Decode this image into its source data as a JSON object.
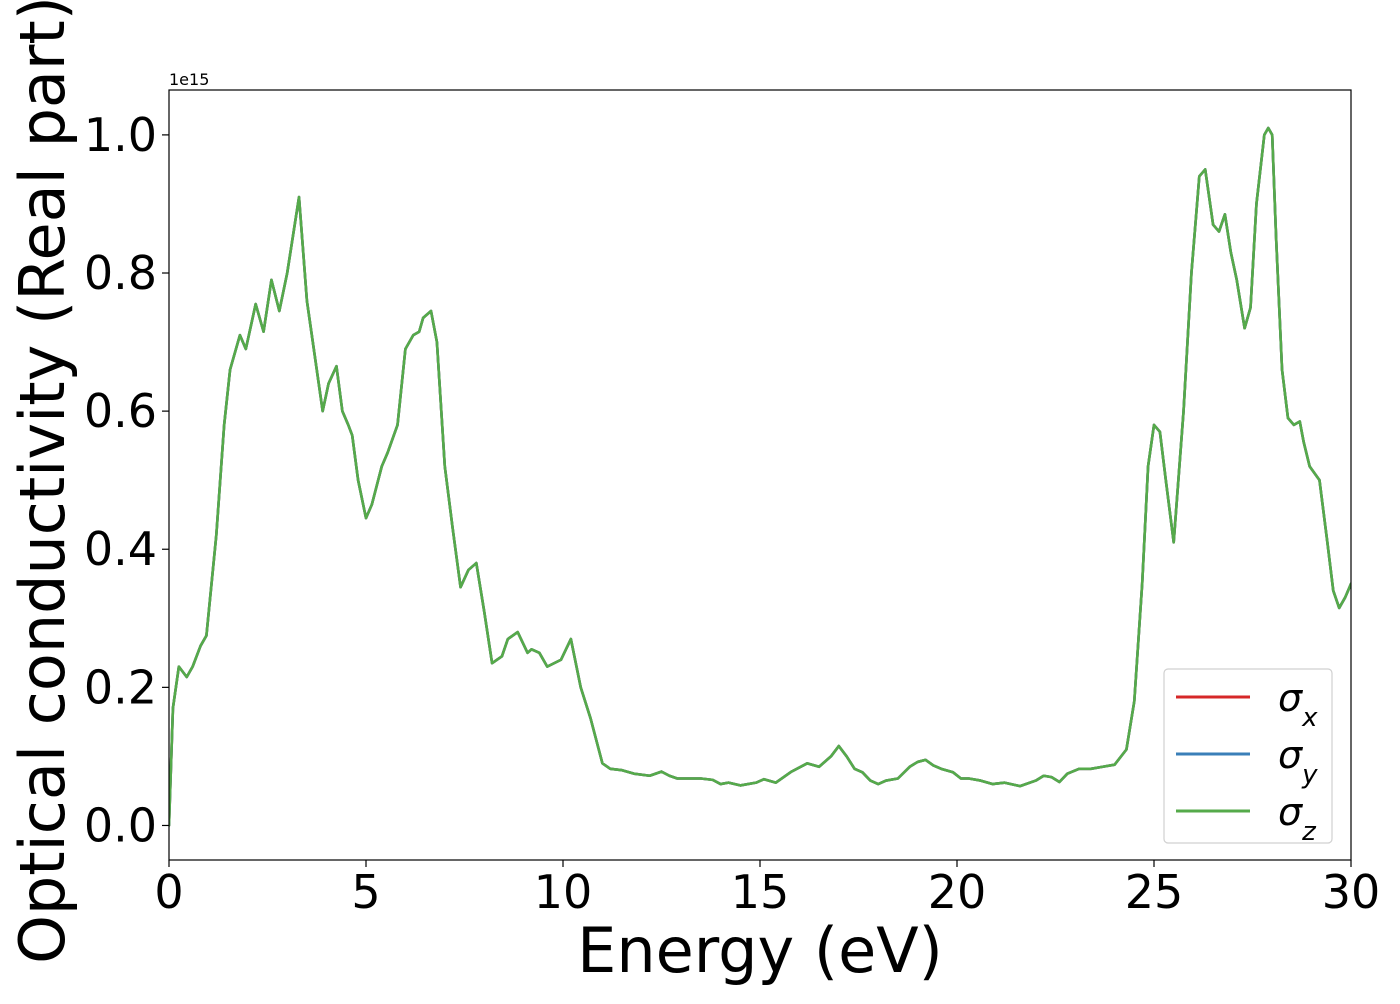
{
  "chart_data": {
    "type": "line",
    "title": "",
    "xlabel": "Energy (eV)",
    "ylabel": "Optical conductivity (Real part)",
    "y_offset_text": "1e15",
    "y_scale_factor": 1000000000000000.0,
    "xlim": [
      0,
      30
    ],
    "ylim": [
      -0.05,
      1.065
    ],
    "xticks": [
      0,
      5,
      10,
      15,
      20,
      25,
      30
    ],
    "xtick_labels": [
      "0",
      "5",
      "10",
      "15",
      "20",
      "25",
      "30"
    ],
    "yticks": [
      0.0,
      0.2,
      0.4,
      0.6,
      0.8,
      1.0
    ],
    "ytick_labels": [
      "0.0",
      "0.2",
      "0.4",
      "0.6",
      "0.8",
      "1.0"
    ],
    "grid": false,
    "legend_position": "lower-right",
    "series": [
      {
        "name": "σ",
        "subscript": "x",
        "color": "#d62728"
      },
      {
        "name": "σ",
        "subscript": "y",
        "color": "#3a7fb8"
      },
      {
        "name": "σ",
        "subscript": "z",
        "color": "#55aa4a"
      }
    ],
    "note": "all three series overlap; shared curve values below",
    "x": [
      0,
      0.1,
      0.25,
      0.45,
      0.6,
      0.8,
      0.95,
      1.2,
      1.4,
      1.55,
      1.8,
      1.95,
      2.2,
      2.4,
      2.6,
      2.8,
      3.0,
      3.3,
      3.5,
      3.65,
      3.9,
      4.05,
      4.25,
      4.4,
      4.55,
      4.65,
      4.8,
      5.0,
      5.15,
      5.4,
      5.55,
      5.8,
      6.0,
      6.2,
      6.35,
      6.45,
      6.65,
      6.8,
      7.0,
      7.2,
      7.4,
      7.6,
      7.8,
      8.0,
      8.2,
      8.45,
      8.6,
      8.85,
      9.1,
      9.2,
      9.4,
      9.6,
      9.95,
      10.2,
      10.45,
      10.7,
      11.0,
      11.2,
      11.5,
      11.8,
      12.2,
      12.5,
      12.7,
      12.9,
      13.2,
      13.5,
      13.8,
      14.0,
      14.2,
      14.5,
      14.9,
      15.1,
      15.4,
      15.8,
      16.2,
      16.5,
      16.8,
      17.0,
      17.2,
      17.4,
      17.6,
      17.8,
      18.0,
      18.2,
      18.5,
      18.8,
      19.0,
      19.2,
      19.4,
      19.6,
      19.9,
      20.1,
      20.3,
      20.6,
      20.9,
      21.2,
      21.6,
      22.0,
      22.2,
      22.4,
      22.6,
      22.8,
      23.1,
      23.4,
      23.7,
      24.0,
      24.3,
      24.5,
      24.7,
      24.85,
      25.0,
      25.15,
      25.3,
      25.5,
      25.75,
      25.95,
      26.15,
      26.3,
      26.5,
      26.65,
      26.8,
      26.95,
      27.1,
      27.3,
      27.45,
      27.6,
      27.8,
      27.9,
      28.0,
      28.1,
      28.25,
      28.4,
      28.55,
      28.7,
      28.8,
      28.95,
      29.2,
      29.4,
      29.55,
      29.7,
      29.85,
      30.0
    ],
    "y": [
      0.0,
      0.17,
      0.23,
      0.215,
      0.23,
      0.26,
      0.275,
      0.42,
      0.58,
      0.66,
      0.71,
      0.69,
      0.755,
      0.715,
      0.79,
      0.745,
      0.8,
      0.91,
      0.76,
      0.7,
      0.6,
      0.64,
      0.665,
      0.6,
      0.58,
      0.565,
      0.5,
      0.445,
      0.465,
      0.52,
      0.54,
      0.58,
      0.69,
      0.71,
      0.715,
      0.735,
      0.745,
      0.7,
      0.52,
      0.43,
      0.345,
      0.37,
      0.38,
      0.31,
      0.235,
      0.245,
      0.27,
      0.28,
      0.25,
      0.255,
      0.25,
      0.23,
      0.24,
      0.27,
      0.2,
      0.155,
      0.09,
      0.082,
      0.08,
      0.075,
      0.072,
      0.078,
      0.072,
      0.068,
      0.068,
      0.068,
      0.066,
      0.06,
      0.062,
      0.058,
      0.062,
      0.067,
      0.062,
      0.078,
      0.09,
      0.085,
      0.1,
      0.115,
      0.1,
      0.082,
      0.077,
      0.065,
      0.06,
      0.065,
      0.068,
      0.085,
      0.092,
      0.095,
      0.087,
      0.082,
      0.077,
      0.068,
      0.068,
      0.065,
      0.06,
      0.062,
      0.057,
      0.065,
      0.072,
      0.07,
      0.063,
      0.075,
      0.082,
      0.082,
      0.085,
      0.088,
      0.11,
      0.18,
      0.35,
      0.52,
      0.58,
      0.57,
      0.5,
      0.41,
      0.6,
      0.8,
      0.94,
      0.95,
      0.87,
      0.86,
      0.885,
      0.83,
      0.79,
      0.72,
      0.75,
      0.9,
      1.0,
      1.01,
      1.0,
      0.85,
      0.66,
      0.59,
      0.58,
      0.585,
      0.555,
      0.52,
      0.5,
      0.41,
      0.34,
      0.315,
      0.33,
      0.35
    ]
  }
}
